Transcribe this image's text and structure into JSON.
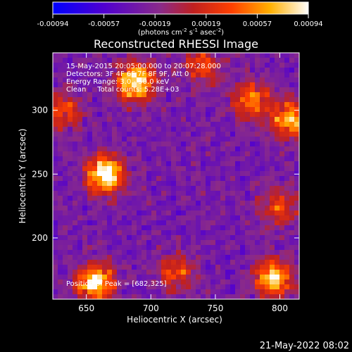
{
  "chart_data": {
    "type": "heatmap",
    "title": "Reconstructed RHESSI Image",
    "xlabel": "Heliocentric X (arcsec)",
    "ylabel": "Heliocentric Y (arcsec)",
    "xlim": [
      624,
      815
    ],
    "ylim": [
      152,
      345
    ],
    "x_ticks": [
      650,
      700,
      750,
      800
    ],
    "y_ticks": [
      200,
      250,
      300
    ],
    "colorbar": {
      "ticks": [
        "-0.00094",
        "-0.00057",
        "-0.00019",
        "0.00019",
        "0.00057",
        "0.00094"
      ],
      "range": [
        -0.00094,
        0.00094
      ],
      "unit_label": "(photons cm",
      "unit_sup1": "-2",
      "unit_mid": " s",
      "unit_sup2": "-1",
      "unit_mid2": " asec",
      "unit_sup3": "-2",
      "unit_end": ")",
      "colormap": [
        "#0000ff",
        "#6a00c8",
        "#8a2a8a",
        "#c02020",
        "#ff5000",
        "#ffb000",
        "#ffff80",
        "#ffffff"
      ]
    },
    "annotations": [
      "15-May-2015 20:05:00.000 to 20:07:28.000",
      "Detectors: 3F 4F 6F 7F 8F 9F, Att 0",
      "Energy Range: 3.0 - 50.0 keV",
      "Clean     Total counts: 5.28E+03"
    ],
    "peak_label": "Position of Peak = [682,325]",
    "grid": false,
    "sources": [
      {
        "x": 688,
        "y": 322,
        "strength": 0.95
      },
      {
        "x": 665,
        "y": 250,
        "strength": 0.95
      },
      {
        "x": 657,
        "y": 165,
        "strength": 0.85
      },
      {
        "x": 778,
        "y": 308,
        "strength": 0.6
      },
      {
        "x": 808,
        "y": 293,
        "strength": 0.75
      },
      {
        "x": 795,
        "y": 168,
        "strength": 0.8
      },
      {
        "x": 632,
        "y": 300,
        "strength": 0.45
      },
      {
        "x": 740,
        "y": 335,
        "strength": 0.45
      },
      {
        "x": 720,
        "y": 172,
        "strength": 0.45
      },
      {
        "x": 800,
        "y": 225,
        "strength": 0.45
      }
    ]
  },
  "footer": {
    "timestamp": "21-May-2022 08:02"
  }
}
